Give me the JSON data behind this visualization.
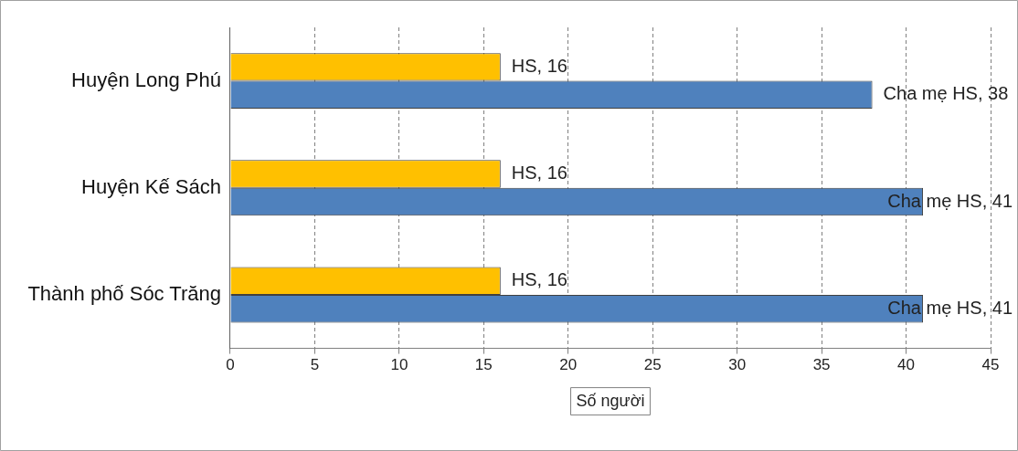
{
  "chart_data": {
    "type": "bar",
    "orientation": "horizontal",
    "xlabel": "Số người",
    "categories": [
      "Huyện Long Phú",
      "Huyện Kế Sách",
      "Thành phố Sóc Trăng"
    ],
    "series": [
      {
        "color": "#ffc000",
        "values": [
          16,
          16,
          16
        ],
        "value_labels": [
          "HS, 16",
          "HS, 16",
          "HS, 16"
        ]
      },
      {
        "color": "#4f81bd",
        "values": [
          38,
          41,
          41
        ],
        "value_labels": [
          "Cha mẹ HS, 38",
          "Cha mẹ HS, 41",
          "Cha mẹ HS, 41"
        ]
      }
    ],
    "xlim": [
      0,
      45
    ],
    "xticks": [
      0,
      5,
      10,
      15,
      20,
      25,
      30,
      35,
      40,
      45
    ],
    "grid": "x",
    "legend": false
  }
}
